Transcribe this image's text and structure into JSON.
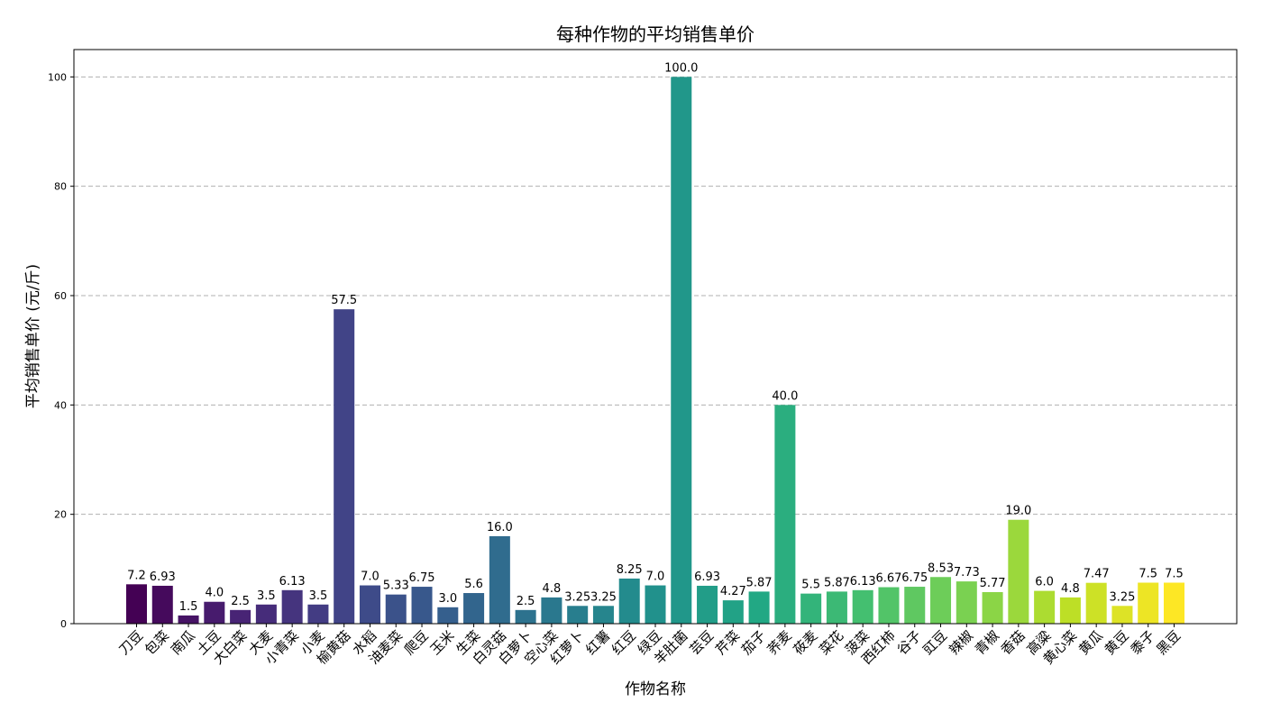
{
  "chart_data": {
    "type": "bar",
    "title": "每种作物的平均销售单价",
    "xlabel": "作物名称",
    "ylabel": "平均销售单价 (元/斤)",
    "ylim": [
      0,
      105
    ],
    "yticks": [
      0,
      20,
      40,
      60,
      80,
      100
    ],
    "grid": "y-dashed",
    "colormap": "viridis",
    "categories": [
      "刀豆",
      "包菜",
      "南瓜",
      "土豆",
      "大白菜",
      "大麦",
      "小青菜",
      "小麦",
      "榆黄菇",
      "水稻",
      "油麦菜",
      "爬豆",
      "玉米",
      "生菜",
      "白灵菇",
      "白萝卜",
      "空心菜",
      "红萝卜",
      "红薯",
      "红豆",
      "绿豆",
      "羊肚菌",
      "芸豆",
      "芹菜",
      "茄子",
      "荞麦",
      "莜麦",
      "菜花",
      "菠菜",
      "西红柿",
      "谷子",
      "豇豆",
      "辣椒",
      "青椒",
      "香菇",
      "高粱",
      "黄心菜",
      "黄瓜",
      "黄豆",
      "黍子",
      "黑豆"
    ],
    "values": [
      7.2,
      6.93,
      1.5,
      4.0,
      2.5,
      3.5,
      6.13,
      3.5,
      57.5,
      7.0,
      5.33,
      6.75,
      3.0,
      5.6,
      16.0,
      2.5,
      4.8,
      3.25,
      3.25,
      8.25,
      7.0,
      100.0,
      6.93,
      4.27,
      5.87,
      40.0,
      5.5,
      5.87,
      6.13,
      6.67,
      6.75,
      8.53,
      7.73,
      5.77,
      19.0,
      6.0,
      4.8,
      7.47,
      3.25,
      7.5,
      7.5
    ],
    "value_labels": [
      "7.2",
      "6.93",
      "1.5",
      "4.0",
      "2.5",
      "3.5",
      "6.13",
      "3.5",
      "57.5",
      "7.0",
      "5.33",
      "6.75",
      "3.0",
      "5.6",
      "16.0",
      "2.5",
      "4.8",
      "3.25",
      "3.25",
      "8.25",
      "7.0",
      "100.0",
      "6.93",
      "4.27",
      "5.87",
      "40.0",
      "5.5",
      "5.87",
      "6.13",
      "6.67",
      "6.75",
      "8.53",
      "7.73",
      "5.77",
      "19.0",
      "6.0",
      "4.8",
      "7.47",
      "3.25",
      "7.5",
      "7.5"
    ]
  }
}
